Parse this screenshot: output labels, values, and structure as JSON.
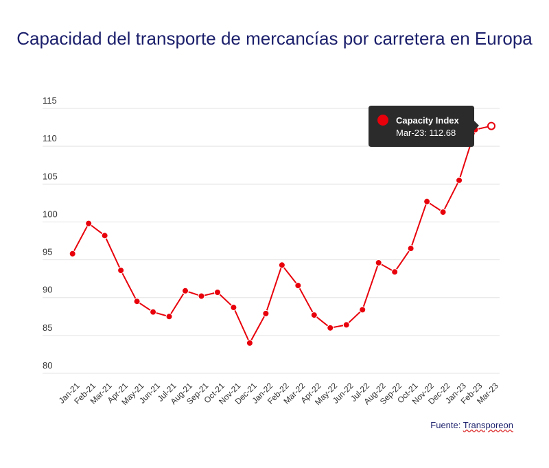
{
  "chart_data": {
    "type": "line",
    "title": "Capacidad del transporte de mercancías por carretera en Europa",
    "xlabel": "",
    "ylabel": "",
    "ylim": [
      80,
      115
    ],
    "yticks": [
      "80",
      "85",
      "90",
      "95",
      "100",
      "105",
      "110",
      "115"
    ],
    "grid": true,
    "categories": [
      "Jan-21",
      "Feb-21",
      "Mar-21",
      "Apr-21",
      "May-21",
      "Jun-21",
      "Jul-21",
      "Aug-21",
      "Sep-21",
      "Oct-21",
      "Nov-21",
      "Dec-21",
      "Jan-22",
      "Feb-22",
      "Mar-22",
      "Apr-22",
      "May-22",
      "Jun-22",
      "Jul-22",
      "Aug-22",
      "Sep-22",
      "Oct-21",
      "Nov-22",
      "Dec-22",
      "Jan-23",
      "Feb-23",
      "Mar-23"
    ],
    "series": [
      {
        "name": "Capacity Index",
        "color": "#e8000b",
        "values": [
          95.8,
          99.8,
          98.2,
          93.6,
          89.5,
          88.1,
          87.5,
          90.9,
          90.2,
          90.7,
          88.7,
          84.0,
          87.9,
          94.3,
          91.6,
          87.7,
          86.0,
          86.4,
          88.4,
          94.6,
          93.4,
          96.5,
          102.7,
          101.3,
          105.5,
          112.2,
          112.68
        ]
      }
    ],
    "tooltip": {
      "series": "Capacity Index",
      "text": "Mar-23: 112.68"
    },
    "source_label": "Fuente:",
    "source_name": "Transporeon"
  }
}
